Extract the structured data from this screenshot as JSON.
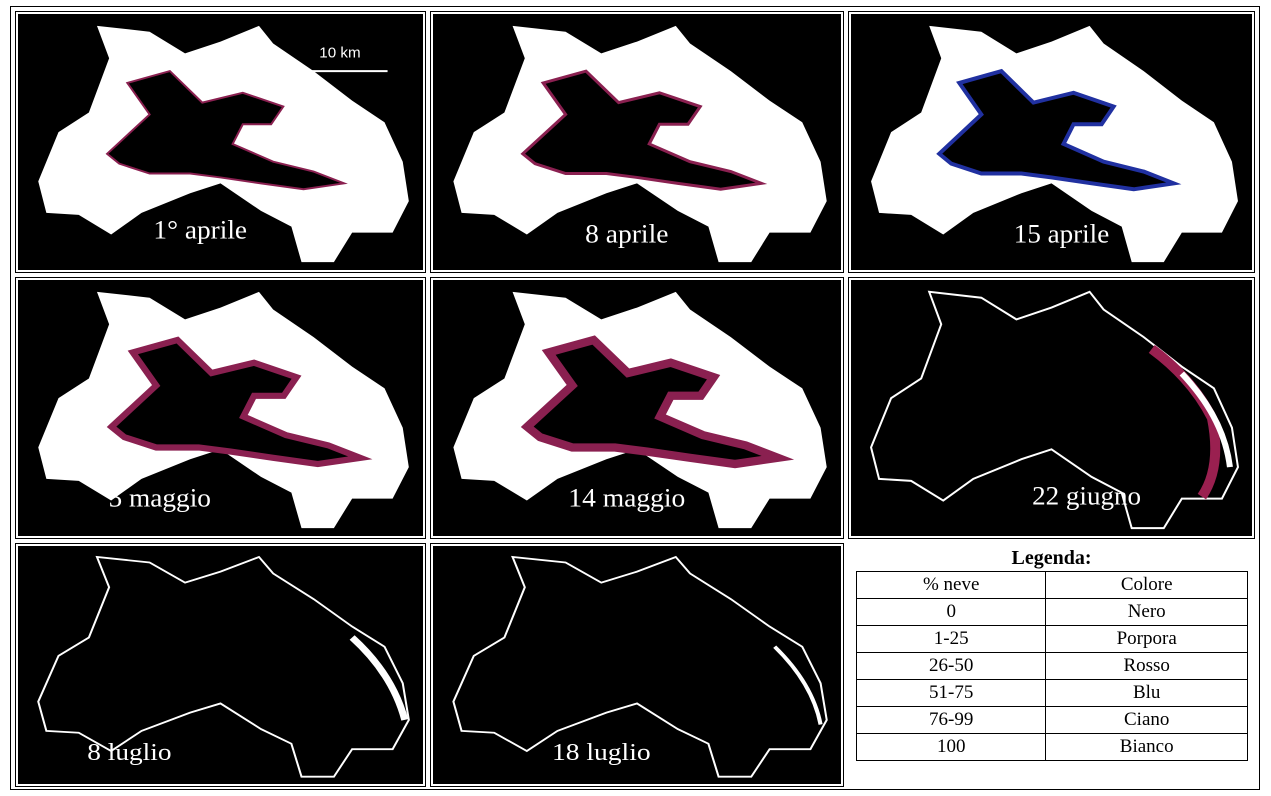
{
  "figure": {
    "scale_bar": "10 km",
    "panels": [
      {
        "label": "1° aprile"
      },
      {
        "label": "8 aprile"
      },
      {
        "label": "15 aprile"
      },
      {
        "label": "5 maggio"
      },
      {
        "label": "14 maggio"
      },
      {
        "label": "22 giugno"
      },
      {
        "label": "8 luglio"
      },
      {
        "label": "18 luglio"
      }
    ],
    "legend": {
      "title": "Legenda:",
      "header": [
        "% neve",
        "Colore"
      ],
      "rows": [
        [
          "0",
          "Nero"
        ],
        [
          "1-25",
          "Porpora"
        ],
        [
          "26-50",
          "Rosso"
        ],
        [
          "51-75",
          "Blu"
        ],
        [
          "76-99",
          "Ciano"
        ],
        [
          "100",
          "Bianco"
        ]
      ]
    }
  }
}
